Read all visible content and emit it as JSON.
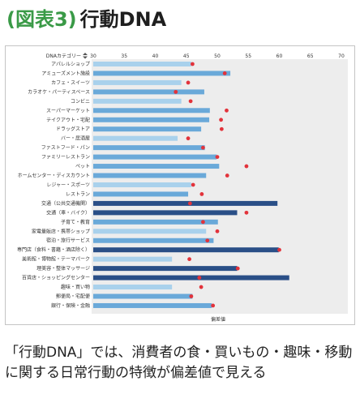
{
  "title": {
    "prefix": "(図表3)",
    "main": "行動DNA"
  },
  "chart_data": {
    "type": "bar",
    "orientation": "horizontal",
    "category_header": "DNAカテゴリー",
    "category_header_icon": "sort-icon",
    "xlabel": "偏差値",
    "ylabel": "",
    "xlim": [
      30,
      70
    ],
    "xticks": [
      30,
      35,
      40,
      45,
      50,
      55,
      60,
      65,
      70
    ],
    "grid": false,
    "categories": [
      "アパレルショップ",
      "アミューズメント施設",
      "カフェ・スイーツ",
      "カラオケ・パーティスペース",
      "コンビニ",
      "スーパーマーケット",
      "テイクアウト・宅配",
      "ドラッグストア",
      "バー・居酒屋",
      "ファストフード・パン",
      "ファミリーレストラン",
      "ペット",
      "ホームセンター・ディスカウント",
      "レジャー・スポーツ",
      "レストラン",
      "交通（公共交通機関）",
      "交通（車・バイク）",
      "子育て・教育",
      "家電量販店・携帯ショップ",
      "宿泊・旅行サービス",
      "専門店（食料・書籍・酒店除く）",
      "美術館・博物館・テーマパーク",
      "理美容・整体マッサージ",
      "百貨店・ショッピングセンター",
      "趣味・買い物",
      "郵便局・宅配便",
      "銀行・保険・金融"
    ],
    "series": [
      {
        "type": "bar",
        "values": [
          45.8,
          52.1,
          44.2,
          47.9,
          44.2,
          48.8,
          48.7,
          47.4,
          43.6,
          48.0,
          49.9,
          50.3,
          48.2,
          45.8,
          45.3,
          59.7,
          53.2,
          50.1,
          48.2,
          49.4,
          59.9,
          42.7,
          53.2,
          61.6,
          42.7,
          46.0,
          49.1
        ]
      },
      {
        "type": "marker",
        "values": [
          46.0,
          51.2,
          45.3,
          43.3,
          45.7,
          51.5,
          50.6,
          50.7,
          45.3,
          47.7,
          50.0,
          54.7,
          51.6,
          46.1,
          47.5,
          45.6,
          54.7,
          47.7,
          50.0,
          48.4,
          60.0,
          45.5,
          53.3,
          47.1,
          47.4,
          45.8,
          49.3
        ]
      }
    ],
    "bar_tones": [
      "light",
      "mid",
      "light",
      "mid",
      "light",
      "mid",
      "mid",
      "mid",
      "light",
      "mid",
      "mid",
      "mid",
      "mid",
      "light",
      "mid",
      "dark",
      "dark",
      "mid",
      "light",
      "mid",
      "dark",
      "light",
      "dark",
      "dark",
      "light",
      "mid",
      "mid"
    ],
    "colors": {
      "light": "#a9d1ec",
      "mid": "#6aa9d9",
      "dark": "#2a4f87",
      "marker": "#e2333b",
      "plot_background": "#ededed",
      "title_accent": "#3a9a47"
    }
  },
  "caption": {
    "line1": "「行動DNA」では、消費者の食・買いもの・趣味・移動",
    "line2": "に関する日常行動の特徴が偏差値で見える"
  }
}
